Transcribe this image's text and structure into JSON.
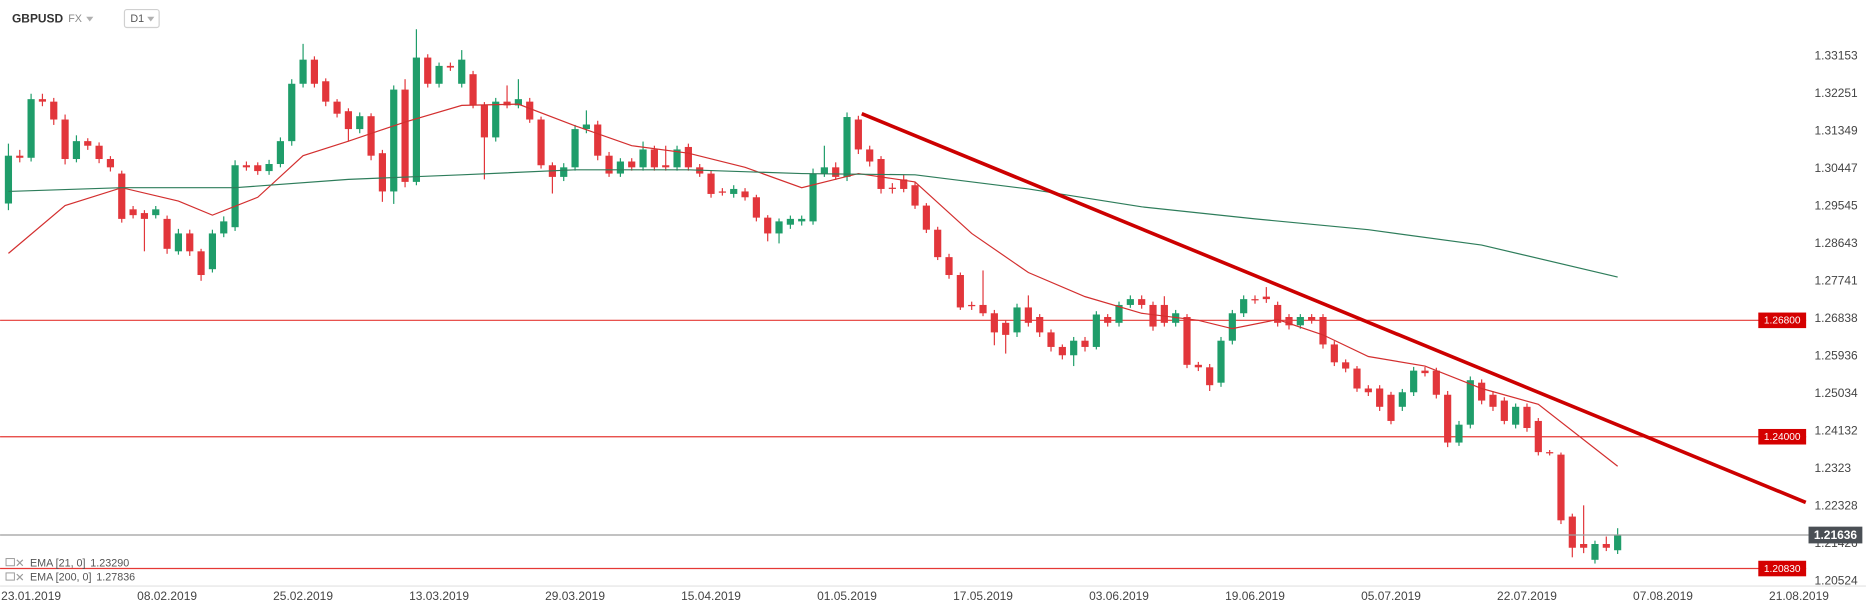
{
  "chart_data": {
    "type": "candlestick",
    "symbol": "GBPUSD",
    "market": "FX",
    "timeframe": "D1",
    "categories": [
      null,
      null,
      "23.01.2019",
      null,
      null,
      null,
      null,
      null,
      null,
      null,
      null,
      null,
      null,
      null,
      "08.02.2019",
      null,
      null,
      null,
      null,
      null,
      null,
      null,
      null,
      null,
      null,
      null,
      "25.02.2019",
      null,
      null,
      null,
      null,
      null,
      null,
      null,
      null,
      null,
      null,
      null,
      "13.03.2019",
      null,
      null,
      null,
      null,
      null,
      null,
      null,
      null,
      null,
      null,
      null,
      "29.03.2019",
      null,
      null,
      null,
      null,
      null,
      null,
      null,
      null,
      null,
      null,
      null,
      "15.04.2019",
      null,
      null,
      null,
      null,
      null,
      null,
      null,
      null,
      null,
      null,
      null,
      "01.05.2019",
      null,
      null,
      null,
      null,
      null,
      null,
      null,
      null,
      null,
      null,
      null,
      "17.05.2019",
      null,
      null,
      null,
      null,
      null,
      null,
      null,
      null,
      null,
      null,
      null,
      "03.06.2019",
      null,
      null,
      null,
      null,
      null,
      null,
      null,
      null,
      null,
      null,
      null,
      "19.06.2019",
      null,
      null,
      null,
      null,
      null,
      null,
      null,
      null,
      null,
      null,
      null,
      "05.07.2019",
      null,
      null,
      null,
      null,
      null,
      null,
      null,
      null,
      null,
      null,
      null,
      "22.07.2019",
      null,
      null,
      null,
      null,
      null,
      null,
      null,
      null,
      null,
      null,
      null,
      "07.08.2019",
      null,
      null,
      null,
      null,
      null,
      null,
      null,
      null,
      null,
      null,
      null,
      "21.08.2019"
    ],
    "open": [
      1.2961,
      1.3076,
      1.3071,
      1.3212,
      1.3206,
      1.3163,
      1.3068,
      1.3111,
      1.31,
      1.3068,
      1.3033,
      1.2947,
      1.2938,
      1.2933,
      1.2924,
      1.2846,
      1.2889,
      1.2846,
      1.2803,
      1.2889,
      1.2904,
      1.3053,
      1.3053,
      1.3039,
      1.3056,
      1.3111,
      1.3249,
      1.3307,
      1.3255,
      1.3206,
      1.3183,
      1.314,
      1.3171,
      1.3082,
      1.299,
      1.3235,
      1.3013,
      1.3312,
      1.3249,
      1.3292,
      1.3249,
      1.3272,
      1.3197,
      1.312,
      1.3206,
      1.3197,
      1.3206,
      1.3163,
      1.3053,
      1.3025,
      1.3048,
      1.314,
      1.3151,
      1.3076,
      1.3033,
      1.3062,
      1.3048,
      1.3091,
      1.3053,
      1.3048,
      1.3097,
      1.3048,
      1.3033,
      1.299,
      1.2984,
      1.299,
      1.2976,
      1.2927,
      1.2889,
      1.291,
      1.2918,
      1.2918,
      1.3033,
      1.3048,
      1.3025,
      1.3163,
      1.3091,
      1.3068,
      1.2999,
      1.3019,
      1.3005,
      1.2956,
      1.2898,
      1.2832,
      1.2789,
      1.2717,
      1.2717,
      1.2697,
      1.2674,
      1.2651,
      1.2711,
      1.2688,
      1.2651,
      1.2616,
      1.2596,
      1.2631,
      1.2616,
      1.2688,
      1.2674,
      1.2717,
      1.2731,
      1.2717,
      1.2717,
      1.2674,
      1.2688,
      1.2573,
      1.2567,
      1.253,
      1.2631,
      1.2697,
      1.2731,
      1.2737,
      1.2717,
      1.2688,
      1.2668,
      1.2688,
      1.2688,
      1.2622,
      1.2579,
      1.2564,
      1.2516,
      1.2516,
      1.2501,
      1.2472,
      1.2507,
      1.2559,
      1.2559,
      1.2501,
      1.2386,
      1.2429,
      1.253,
      1.2501,
      1.2487,
      1.2429,
      1.2472,
      1.2438,
      1.2363,
      1.2357,
      1.2208,
      1.2142,
      1.2104,
      1.2142,
      1.2127,
      null,
      null,
      null,
      null,
      null,
      null,
      null,
      null,
      null,
      null,
      null,
      null,
      null,
      null,
      null,
      null
    ],
    "high": [
      1.3105,
      1.309,
      1.3225,
      1.3225,
      1.3215,
      1.3175,
      1.3125,
      1.3118,
      1.3108,
      1.3075,
      1.304,
      1.2955,
      1.2945,
      1.2955,
      1.2932,
      1.29,
      1.2898,
      1.2852,
      1.2898,
      1.293,
      1.3065,
      1.3062,
      1.306,
      1.3066,
      1.312,
      1.326,
      1.3345,
      1.3315,
      1.3262,
      1.3212,
      1.319,
      1.318,
      1.3178,
      1.309,
      1.3245,
      1.326,
      1.338,
      1.332,
      1.33,
      1.33,
      1.333,
      1.328,
      1.3205,
      1.3215,
      1.3245,
      1.326,
      1.3215,
      1.317,
      1.306,
      1.3058,
      1.315,
      1.3185,
      1.316,
      1.3085,
      1.307,
      1.307,
      1.311,
      1.31,
      1.31,
      1.31,
      1.3105,
      1.3056,
      1.304,
      1.2998,
      1.3005,
      1.2998,
      1.2982,
      1.2933,
      1.2925,
      1.2932,
      1.2932,
      1.3045,
      1.31,
      1.306,
      1.318,
      1.3172,
      1.31,
      1.3075,
      1.301,
      1.303,
      1.3012,
      1.2962,
      1.2905,
      1.284,
      1.2795,
      1.2725,
      1.28,
      1.2705,
      1.268,
      1.272,
      1.274,
      1.2695,
      1.2658,
      1.2622,
      1.264,
      1.264,
      1.2702,
      1.2695,
      1.2725,
      1.274,
      1.274,
      1.2725,
      1.2738,
      1.2705,
      1.2695,
      1.258,
      1.2575,
      1.264,
      1.2705,
      1.274,
      1.274,
      1.276,
      1.2725,
      1.2695,
      1.2695,
      1.2695,
      1.2695,
      1.263,
      1.2586,
      1.257,
      1.2524,
      1.2524,
      1.2508,
      1.2515,
      1.2568,
      1.2568,
      1.2566,
      1.251,
      1.2438,
      1.2545,
      1.2538,
      1.251,
      1.2495,
      1.248,
      1.248,
      1.2445,
      1.2368,
      1.2362,
      1.2215,
      1.2235,
      1.215,
      1.216,
      1.218,
      null,
      null,
      null,
      null,
      null,
      null,
      null,
      null,
      null,
      null,
      null,
      null,
      null,
      null,
      null,
      null
    ],
    "low": [
      1.2945,
      1.306,
      1.3062,
      1.3195,
      1.315,
      1.3055,
      1.306,
      1.309,
      1.3058,
      1.3038,
      1.2915,
      1.2925,
      1.2846,
      1.2925,
      1.284,
      1.2838,
      1.2835,
      1.2775,
      1.2795,
      1.288,
      1.2895,
      1.304,
      1.303,
      1.303,
      1.3048,
      1.31,
      1.324,
      1.324,
      1.3195,
      1.3168,
      1.311,
      1.313,
      1.3065,
      1.2965,
      1.296,
      1.3,
      1.3005,
      1.324,
      1.324,
      1.328,
      1.324,
      1.319,
      1.3019,
      1.311,
      1.319,
      1.319,
      1.3155,
      1.3045,
      1.2985,
      1.3015,
      1.304,
      1.313,
      1.3065,
      1.3025,
      1.3025,
      1.304,
      1.304,
      1.304,
      1.304,
      1.304,
      1.304,
      1.3025,
      1.2975,
      1.298,
      1.2975,
      1.2968,
      1.2918,
      1.287,
      1.2865,
      1.29,
      1.2908,
      1.291,
      1.3025,
      1.3018,
      1.3015,
      1.308,
      1.305,
      1.2985,
      1.2985,
      1.2988,
      1.2948,
      1.289,
      1.2825,
      1.278,
      1.2705,
      1.2705,
      1.269,
      1.262,
      1.26,
      1.264,
      1.2665,
      1.264,
      1.2605,
      1.2586,
      1.257,
      1.2605,
      1.261,
      1.2665,
      1.2665,
      1.271,
      1.2708,
      1.2655,
      1.2665,
      1.2665,
      1.2565,
      1.2558,
      1.251,
      1.252,
      1.2622,
      1.2688,
      1.272,
      1.2722,
      1.2665,
      1.2658,
      1.266,
      1.2672,
      1.2612,
      1.257,
      1.2555,
      1.2508,
      1.2498,
      1.2462,
      1.243,
      1.2462,
      1.2498,
      1.2545,
      1.2492,
      1.2375,
      1.2378,
      1.242,
      1.2478,
      1.2462,
      1.243,
      1.242,
      1.2412,
      1.2355,
      1.2355,
      1.219,
      1.211,
      1.212,
      1.2095,
      1.2125,
      1.2118,
      null,
      null,
      null,
      null,
      null,
      null,
      null,
      null,
      null,
      null,
      null,
      null,
      null,
      null,
      null,
      null
    ],
    "close": [
      1.3076,
      1.3071,
      1.3212,
      1.3206,
      1.3163,
      1.3068,
      1.3111,
      1.31,
      1.3068,
      1.3048,
      1.2924,
      1.2933,
      1.2924,
      1.2947,
      1.2852,
      1.2889,
      1.2846,
      1.2789,
      1.2889,
      1.2918,
      1.3053,
      1.3048,
      1.3039,
      1.3056,
      1.3111,
      1.3249,
      1.3307,
      1.3249,
      1.3206,
      1.3177,
      1.314,
      1.3171,
      1.3076,
      1.299,
      1.3235,
      1.3013,
      1.3312,
      1.3249,
      1.3292,
      1.3288,
      1.3307,
      1.3197,
      1.312,
      1.3206,
      1.3197,
      1.3212,
      1.3163,
      1.3053,
      1.3025,
      1.3048,
      1.314,
      1.3151,
      1.3076,
      1.3033,
      1.3062,
      1.3048,
      1.3091,
      1.3048,
      1.3048,
      1.3091,
      1.3048,
      1.3033,
      1.2984,
      1.2987,
      1.2996,
      1.2976,
      1.2927,
      1.2889,
      1.2918,
      1.2924,
      1.2924,
      1.3033,
      1.3048,
      1.3025,
      1.3169,
      1.3091,
      1.3062,
      1.2996,
      1.2996,
      1.2996,
      1.2956,
      1.2898,
      1.2832,
      1.2789,
      1.2711,
      1.2714,
      1.2697,
      1.2651,
      1.2645,
      1.2711,
      1.2674,
      1.2651,
      1.2616,
      1.2596,
      1.2631,
      1.2616,
      1.2694,
      1.2674,
      1.2717,
      1.2731,
      1.2717,
      1.2665,
      1.2674,
      1.2697,
      1.2573,
      1.2567,
      1.2524,
      1.2631,
      1.2697,
      1.2731,
      1.2728,
      1.2731,
      1.2674,
      1.2668,
      1.2688,
      1.268,
      1.2622,
      1.2579,
      1.2564,
      1.2516,
      1.2507,
      1.2472,
      1.2438,
      1.2507,
      1.2559,
      1.2553,
      1.2501,
      1.2386,
      1.2429,
      1.2536,
      1.2487,
      1.2472,
      1.2438,
      1.2472,
      1.2421,
      1.2363,
      1.236,
      1.2199,
      1.2133,
      1.2133,
      1.2142,
      1.2133,
      1.2164,
      null,
      null,
      null,
      null,
      null,
      null,
      null,
      null,
      null,
      null,
      null,
      null,
      null,
      null,
      null,
      null
    ],
    "up_color": "#1f9d6a",
    "down_color": "#e2363b",
    "ylim": [
      1.20408,
      1.34361
    ],
    "yticks": [
      1.33153,
      1.32251,
      1.31349,
      1.30447,
      1.29545,
      1.28643,
      1.27741,
      1.26838,
      1.25936,
      1.25034,
      1.24132,
      1.2323,
      1.22328,
      1.21426,
      1.20524
    ],
    "indicators": [
      {
        "name": "EMA [21, 0]",
        "color": "#d32f2f",
        "x": [
          0,
          5,
          10,
          15,
          18,
          22,
          26,
          30,
          35,
          40,
          45,
          50,
          55,
          60,
          65,
          70,
          75,
          80,
          85,
          90,
          95,
          100,
          105,
          108,
          112,
          116,
          120,
          125,
          130,
          135,
          142
        ],
        "values": [
          1.2841,
          1.2956,
          1.2999,
          1.2967,
          1.2933,
          1.2976,
          1.3076,
          1.3111,
          1.3157,
          1.3197,
          1.32,
          1.3148,
          1.31,
          1.3082,
          1.3048,
          1.2999,
          1.3033,
          1.3013,
          1.2889,
          1.2795,
          1.2737,
          1.2697,
          1.268,
          1.266,
          1.2682,
          1.2645,
          1.2593,
          1.257,
          1.2516,
          1.2478,
          1.2329
        ],
        "last": {
          "value": 1.2329,
          "label": "1.23290"
        }
      },
      {
        "name": "EMA [200, 0]",
        "color": "#2e7d5b",
        "x": [
          0,
          10,
          20,
          30,
          40,
          50,
          60,
          70,
          80,
          90,
          100,
          110,
          120,
          130,
          142
        ],
        "values": [
          1.299,
          1.2999,
          1.2999,
          1.3019,
          1.303,
          1.3042,
          1.3042,
          1.3033,
          1.303,
          1.2996,
          1.2953,
          1.2924,
          1.2898,
          1.2861,
          1.2784
        ],
        "last": {
          "value": 1.27836,
          "label": "1.27836"
        }
      }
    ],
    "trendline": {
      "color": "#cc0000",
      "x": [
        75.3,
        158.6
      ],
      "values": [
        1.3177,
        1.2242
      ]
    },
    "levels": [
      {
        "value": 1.268,
        "label": "1.26800"
      },
      {
        "value": 1.24,
        "label": "1.24000"
      },
      {
        "value": 1.2083,
        "label": "1.20830"
      }
    ],
    "level_color": "#e53935",
    "current_price": 1.21636
  }
}
